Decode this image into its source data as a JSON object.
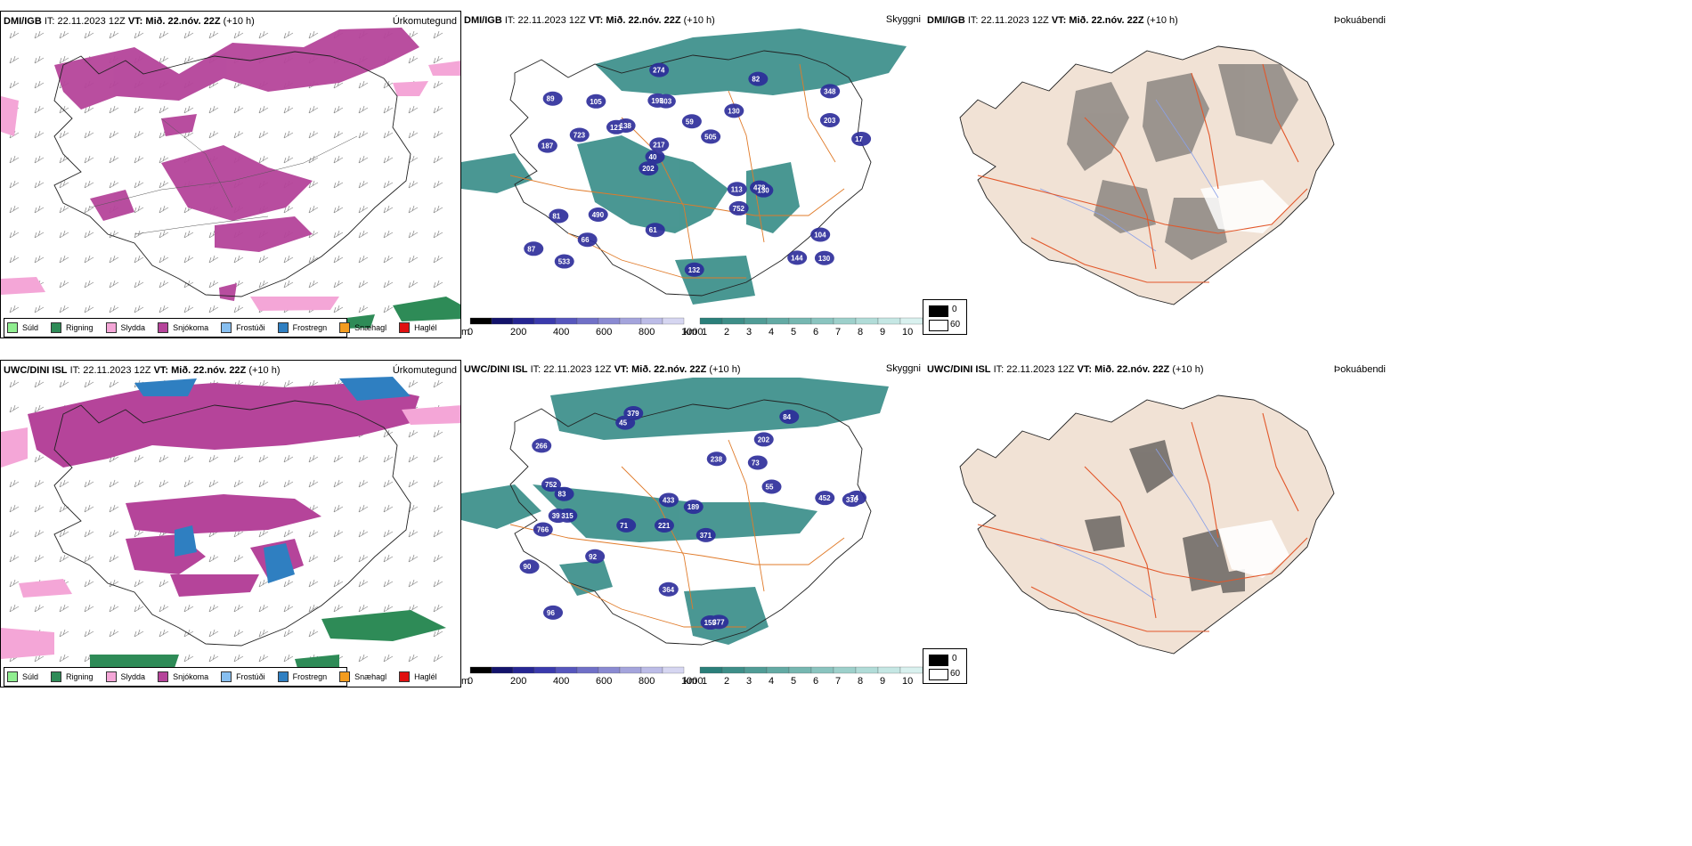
{
  "panels": {
    "dmi_precip": {
      "source": "DMI/IGB",
      "it_label": "IT:",
      "it_value": "22.11.2023 12Z",
      "vt_label": "VT:",
      "vt_value": "Mið. 22.nóv. 22Z",
      "offset": "(+10 h)",
      "product": "Úrkomutegund"
    },
    "dmi_vis": {
      "source": "DMI/IGB",
      "it_label": "IT:",
      "it_value": "22.11.2023 12Z",
      "vt_label": "VT:",
      "vt_value": "Mið. 22.nóv. 22Z",
      "offset": "(+10 h)",
      "product": "Skyggni"
    },
    "dmi_fog": {
      "source": "DMI/IGB",
      "it_label": "IT:",
      "it_value": "22.11.2023 12Z",
      "vt_label": "VT:",
      "vt_value": "Mið. 22.nóv. 22Z",
      "offset": "(+10 h)",
      "product": "Þokuábendi"
    },
    "uwc_precip": {
      "source": "UWC/DINI ISL",
      "it_label": "IT:",
      "it_value": "22.11.2023 12Z",
      "vt_label": "VT:",
      "vt_value": "Mið. 22.nóv. 22Z",
      "offset": "(+10 h)",
      "product": "Úrkomutegund"
    },
    "uwc_vis": {
      "source": "UWC/DINI ISL",
      "it_label": "IT:",
      "it_value": "22.11.2023 12Z",
      "vt_label": "VT:",
      "vt_value": "Mið. 22.nóv. 22Z",
      "offset": "(+10 h)",
      "product": "Skyggni"
    },
    "uwc_fog": {
      "source": "UWC/DINI ISL",
      "it_label": "IT:",
      "it_value": "22.11.2023 12Z",
      "vt_label": "VT:",
      "vt_value": "Mið. 22.nóv. 22Z",
      "offset": "(+10 h)",
      "product": "Þokuábendi"
    }
  },
  "precip_legend": [
    {
      "label": "Súld",
      "color": "#90ee90"
    },
    {
      "label": "Rigning",
      "color": "#2e8b57"
    },
    {
      "label": "Slydda",
      "color": "#f4a6d7"
    },
    {
      "label": "Snjókoma",
      "color": "#b5449a"
    },
    {
      "label": "Frostúði",
      "color": "#87bff0"
    },
    {
      "label": "Frostregn",
      "color": "#2f7fc1"
    },
    {
      "label": "Snæhagl",
      "color": "#f39c1f"
    },
    {
      "label": "Haglél",
      "color": "#e01010"
    }
  ],
  "ceiling_bar": {
    "unit": "m",
    "ticks": [
      "0",
      "200",
      "400",
      "600",
      "800",
      "1000"
    ],
    "colors": [
      "#000000",
      "#13136b",
      "#262693",
      "#3a3aad",
      "#5656bd",
      "#7070c7",
      "#8a8ad2",
      "#a4a4dc",
      "#bcbce7",
      "#d6d6f1"
    ]
  },
  "visibility_bar": {
    "unit": "km",
    "ticks": [
      "1",
      "2",
      "3",
      "4",
      "5",
      "6",
      "7",
      "8",
      "9",
      "10"
    ],
    "colors": [
      "#2a7f7a",
      "#3d8e88",
      "#509c96",
      "#63aaa4",
      "#76b7b1",
      "#8ac4bf",
      "#9dd0cb",
      "#b1dcd8",
      "#c5e7e4",
      "#d9f1ef"
    ]
  },
  "fog_legend": {
    "labels": [
      "0",
      "60"
    ],
    "colors": [
      "#000000",
      "#ffffff"
    ]
  },
  "dmi_cloud_labels": [
    "130",
    "187",
    "348",
    "202",
    "130",
    "533",
    "195",
    "59",
    "81",
    "138",
    "87",
    "66",
    "403",
    "505",
    "130",
    "89",
    "274",
    "17",
    "113",
    "203",
    "40",
    "61",
    "217",
    "105",
    "82",
    "490",
    "144",
    "104",
    "478",
    "132",
    "121",
    "723",
    "752"
  ],
  "uwc_cloud_labels": [
    "379",
    "202",
    "330",
    "221",
    "371",
    "315",
    "266",
    "73",
    "766",
    "238",
    "189",
    "96",
    "45",
    "71",
    "155",
    "377",
    "364",
    "84",
    "55",
    "92",
    "83",
    "39",
    "74",
    "452",
    "90",
    "752",
    "433"
  ]
}
